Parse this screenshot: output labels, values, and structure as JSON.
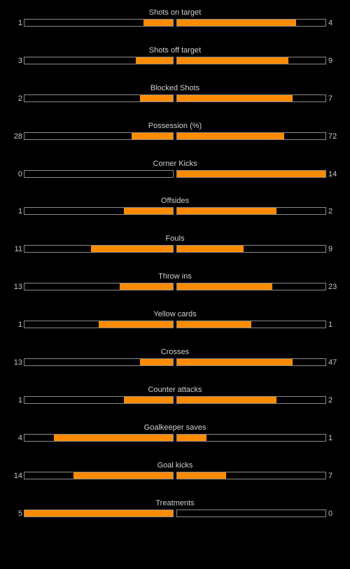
{
  "colors": {
    "background": "#000000",
    "bar_fill": "#ff8c00",
    "bar_border": "#8a8a8a",
    "text": "#c8c8c8"
  },
  "stats": [
    {
      "label": "Shots on target",
      "home": "1",
      "away": "4",
      "home_fill": 0.2,
      "away_fill": 0.8
    },
    {
      "label": "Shots off target",
      "home": "3",
      "away": "9",
      "home_fill": 0.25,
      "away_fill": 0.75
    },
    {
      "label": "Blocked Shots",
      "home": "2",
      "away": "7",
      "home_fill": 0.22,
      "away_fill": 0.78
    },
    {
      "label": "Possession (%)",
      "home": "28",
      "away": "72",
      "home_fill": 0.28,
      "away_fill": 0.72
    },
    {
      "label": "Corner Kicks",
      "home": "0",
      "away": "14",
      "home_fill": 0.0,
      "away_fill": 1.0
    },
    {
      "label": "Offsides",
      "home": "1",
      "away": "2",
      "home_fill": 0.33,
      "away_fill": 0.67
    },
    {
      "label": "Fouls",
      "home": "11",
      "away": "9",
      "home_fill": 0.55,
      "away_fill": 0.45
    },
    {
      "label": "Throw ins",
      "home": "13",
      "away": "23",
      "home_fill": 0.36,
      "away_fill": 0.64
    },
    {
      "label": "Yellow cards",
      "home": "1",
      "away": "1",
      "home_fill": 0.5,
      "away_fill": 0.5
    },
    {
      "label": "Crosses",
      "home": "13",
      "away": "47",
      "home_fill": 0.22,
      "away_fill": 0.78
    },
    {
      "label": "Counter attacks",
      "home": "1",
      "away": "2",
      "home_fill": 0.33,
      "away_fill": 0.67
    },
    {
      "label": "Goalkeeper saves",
      "home": "4",
      "away": "1",
      "home_fill": 0.8,
      "away_fill": 0.2
    },
    {
      "label": "Goal kicks",
      "home": "14",
      "away": "7",
      "home_fill": 0.67,
      "away_fill": 0.33
    },
    {
      "label": "Treatments",
      "home": "5",
      "away": "0",
      "home_fill": 1.0,
      "away_fill": 0.0
    }
  ]
}
